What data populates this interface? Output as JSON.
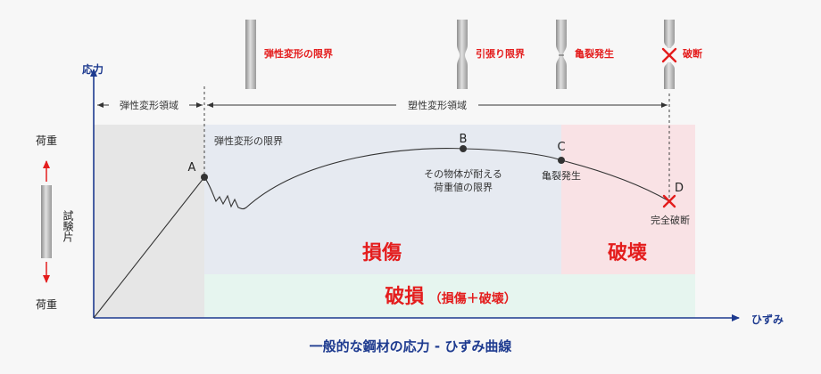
{
  "title": "一般的な鋼材の応力 - ひずみ曲線",
  "axes": {
    "y_label": "応力",
    "x_label": "ひずみ"
  },
  "specimen": {
    "load_top": "荷重",
    "load_bottom": "荷重",
    "label": "試験片"
  },
  "specimen_stages": [
    {
      "label": "弾性変形の限界",
      "state": "straight"
    },
    {
      "label": "引張り限界",
      "state": "necking"
    },
    {
      "label": "亀裂発生",
      "state": "cracked"
    },
    {
      "label": "破断",
      "state": "fractured"
    }
  ],
  "ranges": {
    "elastic": "弾性変形領域",
    "plastic": "塑性変形領域"
  },
  "points": {
    "A": {
      "name": "A",
      "note": "弾性変形の限界"
    },
    "B": {
      "name": "B",
      "note_line1": "その物体が耐える",
      "note_line2": "荷重値の限界"
    },
    "C": {
      "name": "C",
      "note": "亀裂発生"
    },
    "D": {
      "name": "D",
      "note": "完全破断"
    }
  },
  "zones": {
    "damage": "損傷",
    "destruction": "破壊",
    "breakage": "破損",
    "breakage_detail": "（損傷＋破壊）"
  },
  "colors": {
    "axis": "#1d3a8f",
    "accent_red": "#e41d1d",
    "elastic_bg": "#e6e6e6",
    "damage_bg": "#e6eaf1",
    "destruction_bg": "#f9e2e5",
    "breakage_bg": "#e6f5ef",
    "curve": "#333333"
  }
}
